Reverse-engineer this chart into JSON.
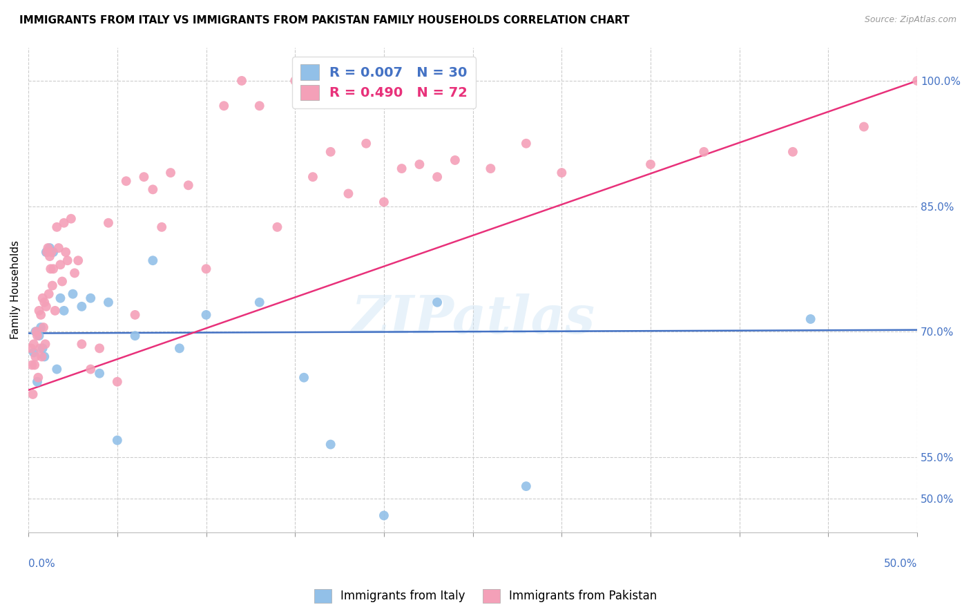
{
  "title": "IMMIGRANTS FROM ITALY VS IMMIGRANTS FROM PAKISTAN FAMILY HOUSEHOLDS CORRELATION CHART",
  "source": "Source: ZipAtlas.com",
  "ylabel": "Family Households",
  "xlim": [
    0.0,
    50.0
  ],
  "ylim": [
    46.0,
    104.0
  ],
  "italy_color": "#92c0e8",
  "pakistan_color": "#f4a0b8",
  "italy_line_color": "#4472c4",
  "pakistan_line_color": "#e8317a",
  "watermark": "ZIPatlas",
  "legend_italy_r": "R = 0.007",
  "legend_italy_n": "N = 30",
  "legend_pakistan_r": "R = 0.490",
  "legend_pakistan_n": "N = 72",
  "italy_scatter_x": [
    0.3,
    0.4,
    0.5,
    0.6,
    0.7,
    0.8,
    0.9,
    1.0,
    1.2,
    1.4,
    1.6,
    1.8,
    2.0,
    2.5,
    3.0,
    3.5,
    4.0,
    4.5,
    5.0,
    6.0,
    7.0,
    8.5,
    10.0,
    13.0,
    15.5,
    17.0,
    20.0,
    23.0,
    28.0,
    44.0
  ],
  "italy_scatter_y": [
    67.5,
    70.0,
    64.0,
    69.5,
    70.5,
    68.0,
    67.0,
    79.5,
    80.0,
    79.5,
    65.5,
    74.0,
    72.5,
    74.5,
    73.0,
    74.0,
    65.0,
    73.5,
    57.0,
    69.5,
    78.5,
    68.0,
    72.0,
    73.5,
    64.5,
    56.5,
    48.0,
    73.5,
    51.5,
    71.5
  ],
  "pakistan_scatter_x": [
    0.15,
    0.2,
    0.25,
    0.3,
    0.35,
    0.4,
    0.45,
    0.5,
    0.55,
    0.6,
    0.65,
    0.7,
    0.75,
    0.8,
    0.85,
    0.9,
    0.95,
    1.0,
    1.05,
    1.1,
    1.15,
    1.2,
    1.25,
    1.3,
    1.35,
    1.4,
    1.5,
    1.6,
    1.7,
    1.8,
    1.9,
    2.0,
    2.1,
    2.2,
    2.4,
    2.6,
    2.8,
    3.0,
    3.5,
    4.0,
    4.5,
    5.0,
    5.5,
    6.0,
    6.5,
    7.0,
    7.5,
    8.0,
    9.0,
    10.0,
    11.0,
    12.0,
    13.0,
    14.0,
    15.0,
    16.0,
    17.0,
    18.0,
    19.0,
    20.0,
    21.0,
    22.0,
    23.0,
    24.0,
    26.0,
    28.0,
    30.0,
    35.0,
    38.0,
    43.0,
    47.0,
    50.0
  ],
  "pakistan_scatter_y": [
    68.0,
    66.0,
    62.5,
    68.5,
    66.0,
    67.0,
    70.0,
    69.5,
    64.5,
    72.5,
    68.0,
    72.0,
    67.0,
    74.0,
    70.5,
    73.5,
    68.5,
    73.0,
    79.5,
    80.0,
    74.5,
    79.0,
    77.5,
    79.5,
    75.5,
    77.5,
    72.5,
    82.5,
    80.0,
    78.0,
    76.0,
    83.0,
    79.5,
    78.5,
    83.5,
    77.0,
    78.5,
    68.5,
    65.5,
    68.0,
    83.0,
    64.0,
    88.0,
    72.0,
    88.5,
    87.0,
    82.5,
    89.0,
    87.5,
    77.5,
    97.0,
    100.0,
    97.0,
    82.5,
    100.0,
    88.5,
    91.5,
    86.5,
    92.5,
    85.5,
    89.5,
    90.0,
    88.5,
    90.5,
    89.5,
    92.5,
    89.0,
    90.0,
    91.5,
    91.5,
    94.5,
    100.0
  ],
  "italy_line_x": [
    0.0,
    50.0
  ],
  "italy_line_y": [
    69.8,
    70.2
  ],
  "pakistan_line_x": [
    0.0,
    50.0
  ],
  "pakistan_line_y": [
    63.0,
    100.0
  ],
  "ytick_positions": [
    50.0,
    55.0,
    70.0,
    85.0,
    100.0
  ],
  "ytick_labels": [
    "50.0%",
    "55.0%",
    "70.0%",
    "85.0%",
    "100.0%"
  ],
  "xtick_positions": [
    0,
    5,
    10,
    15,
    20,
    25,
    30,
    35,
    40,
    45,
    50
  ],
  "grid_color": "#cccccc",
  "background_color": "#ffffff",
  "title_fontsize": 11,
  "axis_label_fontsize": 11,
  "tick_fontsize": 11
}
